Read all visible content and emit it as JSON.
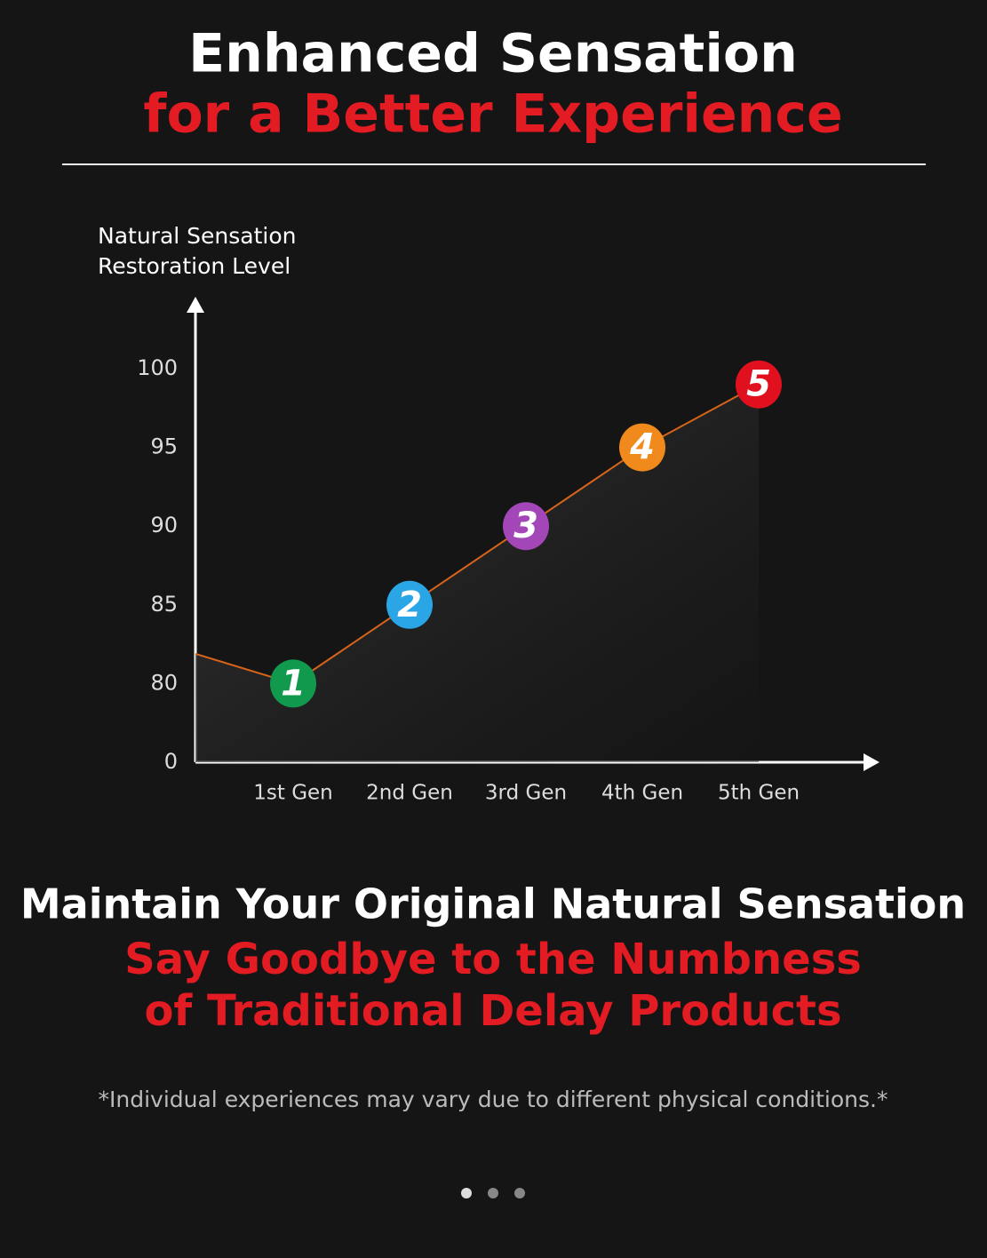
{
  "header": {
    "title": "Enhanced Sensation",
    "subtitle": "for a Better Experience"
  },
  "chart_data": {
    "type": "line",
    "ylabel": [
      "Natural Sensation",
      "Restoration Level"
    ],
    "categories": [
      "1st Gen",
      "2nd Gen",
      "3rd Gen",
      "4th Gen",
      "5th Gen"
    ],
    "values": [
      80,
      85,
      90,
      95,
      99
    ],
    "point_labels": [
      "1",
      "2",
      "3",
      "4",
      "5"
    ],
    "point_colors": [
      "#119a4e",
      "#2aa6e6",
      "#a346b8",
      "#f08a1c",
      "#e0101e"
    ],
    "color": "#d8641c",
    "ylim": [
      0,
      100
    ],
    "yticks": [
      0,
      80,
      85,
      90,
      95,
      100
    ]
  },
  "footer": {
    "headline": "Maintain Your Original Natural Sensation",
    "red_lines": [
      "Say Goodbye to the Numbness",
      "of Traditional Delay Products"
    ],
    "note": "*Individual experiences may vary due to different physical conditions.*"
  }
}
